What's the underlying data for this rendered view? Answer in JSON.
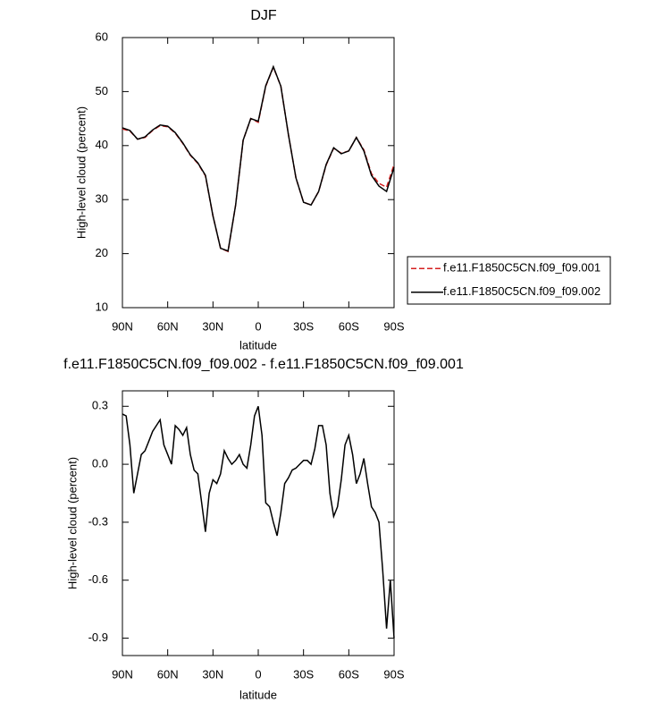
{
  "chart_data": [
    {
      "type": "line",
      "title": "DJF",
      "x_label": "latitude",
      "y_label": "High-level cloud (percent)",
      "x": [
        90,
        85,
        80,
        75,
        70,
        65,
        60,
        55,
        50,
        45,
        40,
        35,
        30,
        25,
        20,
        15,
        10,
        5,
        0,
        -5,
        -10,
        -15,
        -20,
        -25,
        -30,
        -35,
        -40,
        -45,
        -50,
        -55,
        -60,
        -65,
        -70,
        -75,
        -80,
        -85,
        -90
      ],
      "xlim": [
        90,
        -90
      ],
      "xticks": [
        {
          "value": 90,
          "label": "90N"
        },
        {
          "value": 60,
          "label": "60N"
        },
        {
          "value": 30,
          "label": "30N"
        },
        0,
        {
          "value": -30,
          "label": "30S"
        },
        {
          "value": -60,
          "label": "60S"
        },
        {
          "value": -90,
          "label": "90S"
        }
      ],
      "ylim": [
        10,
        60
      ],
      "yticks": [
        10,
        20,
        30,
        40,
        50,
        60
      ],
      "legend": "right",
      "series": [
        {
          "name": "f.e11.F1850C5CN.f09_f09.001",
          "color": "#d62020",
          "dash": true,
          "values": [
            43.1,
            42.7,
            41.2,
            41.5,
            42.8,
            43.7,
            43.5,
            42.3,
            40.4,
            38.2,
            36.7,
            34.4,
            27.0,
            21.0,
            20.4,
            29.0,
            41.0,
            45.0,
            44.3,
            51.0,
            54.5,
            51.0,
            42.0,
            34.0,
            29.5,
            29.0,
            31.5,
            36.4,
            39.5,
            38.6,
            39.0,
            41.5,
            39.2,
            34.8,
            33.0,
            32.3,
            36.5
          ]
        },
        {
          "name": "f.e11.F1850C5CN.f09_f09.002",
          "color": "#000000",
          "dash": false,
          "values": [
            43.3,
            42.8,
            41.2,
            41.6,
            42.9,
            43.8,
            43.6,
            42.4,
            40.5,
            38.3,
            36.8,
            34.5,
            27.0,
            21.0,
            20.5,
            29.0,
            41.0,
            45.0,
            44.5,
            51.1,
            54.6,
            51.0,
            42.0,
            34.0,
            29.5,
            29.0,
            31.5,
            36.5,
            39.6,
            38.5,
            39.0,
            41.5,
            39.0,
            34.5,
            32.5,
            31.5,
            36.0
          ]
        }
      ]
    },
    {
      "type": "line",
      "title": "f.e11.F1850C5CN.f09_f09.002 - f.e11.F1850C5CN.f09_f09.001",
      "x_label": "latitude",
      "y_label": "High-level cloud (percent)",
      "x": [
        90,
        87.5,
        85,
        82.5,
        80,
        77.5,
        75,
        72.5,
        70,
        67.5,
        65,
        62.5,
        60,
        57.5,
        55,
        52.5,
        50,
        47.5,
        45,
        42.5,
        40,
        37.5,
        35,
        32.5,
        30,
        27.5,
        25,
        22.5,
        20,
        17.5,
        15,
        12.5,
        10,
        7.5,
        5,
        2.5,
        0,
        -2.5,
        -5,
        -7.5,
        -10,
        -12.5,
        -15,
        -17.5,
        -20,
        -22.5,
        -25,
        -27.5,
        -30,
        -32.5,
        -35,
        -37.5,
        -40,
        -42.5,
        -45,
        -47.5,
        -50,
        -52.5,
        -55,
        -57.5,
        -60,
        -62.5,
        -65,
        -67.5,
        -70,
        -72.5,
        -75,
        -77.5,
        -80,
        -82.5,
        -85,
        -87.5,
        -90
      ],
      "xlim": [
        90,
        -90
      ],
      "xticks": [
        {
          "value": 90,
          "label": "90N"
        },
        {
          "value": 60,
          "label": "60N"
        },
        {
          "value": 30,
          "label": "30N"
        },
        0,
        {
          "value": -30,
          "label": "30S"
        },
        {
          "value": -60,
          "label": "60S"
        },
        {
          "value": -90,
          "label": "90S"
        }
      ],
      "ylim": [
        -0.99,
        0.38
      ],
      "yticks": [
        -0.9,
        -0.6,
        -0.3,
        {
          "value": 0,
          "label": "0.0"
        },
        0.3
      ],
      "color": "#000000",
      "values": [
        0.26,
        0.25,
        0.1,
        -0.15,
        -0.05,
        0.05,
        0.07,
        0.12,
        0.17,
        0.2,
        0.23,
        0.1,
        0.05,
        0.0,
        0.2,
        0.18,
        0.15,
        0.19,
        0.05,
        -0.03,
        -0.05,
        -0.2,
        -0.35,
        -0.15,
        -0.08,
        -0.1,
        -0.05,
        0.07,
        0.03,
        0.0,
        0.02,
        0.05,
        0.0,
        -0.02,
        0.1,
        0.25,
        0.3,
        0.15,
        -0.2,
        -0.22,
        -0.3,
        -0.37,
        -0.25,
        -0.1,
        -0.07,
        -0.03,
        -0.02,
        0.0,
        0.02,
        0.02,
        0.0,
        0.08,
        0.2,
        0.2,
        0.1,
        -0.15,
        -0.27,
        -0.22,
        -0.08,
        0.1,
        0.15,
        0.05,
        -0.1,
        -0.05,
        0.03,
        -0.1,
        -0.22,
        -0.25,
        -0.3,
        -0.55,
        -0.85,
        -0.6,
        -0.9
      ]
    }
  ]
}
